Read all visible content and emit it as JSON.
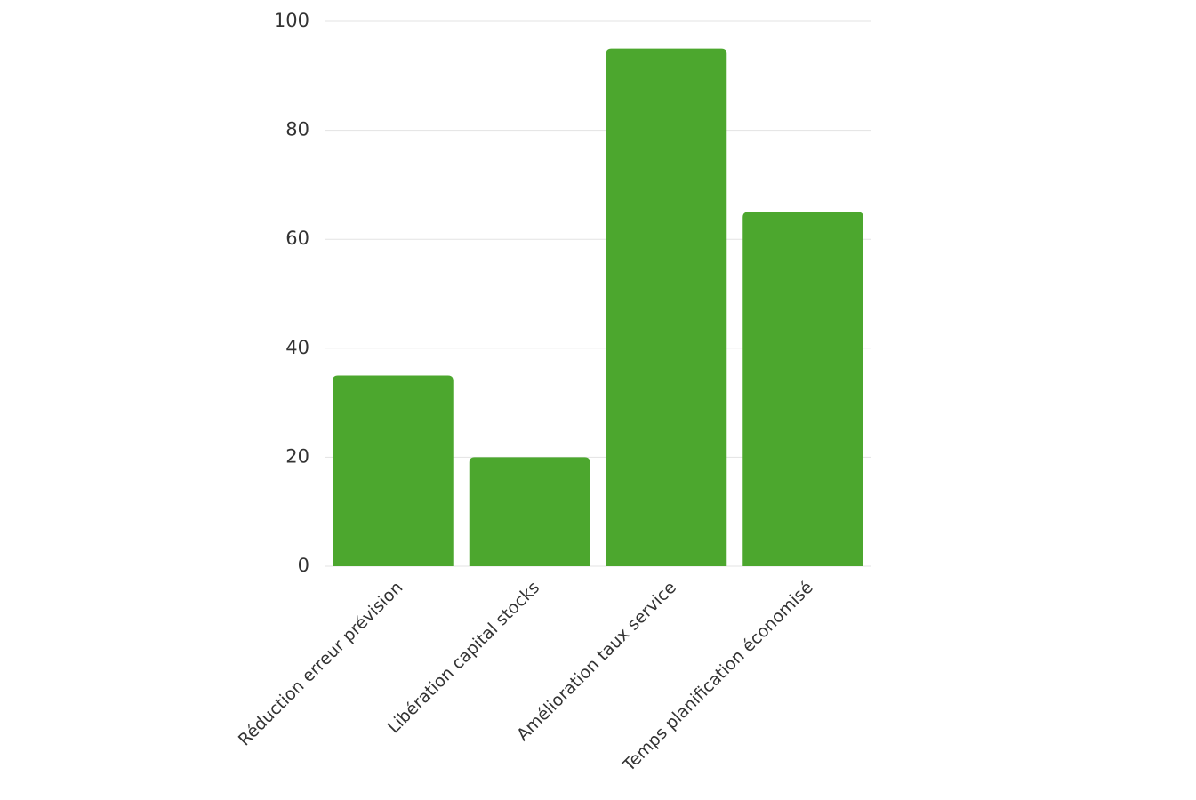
{
  "chart_data": {
    "type": "bar",
    "categories": [
      "Réduction erreur prévision",
      "Libération capital stocks",
      "Amélioration taux service",
      "Temps planification économisé"
    ],
    "values": [
      35,
      20,
      95,
      65
    ],
    "color": "#4ca72e",
    "ylim": [
      0,
      100
    ],
    "yticks": [
      0,
      20,
      40,
      60,
      80,
      100
    ],
    "grid": true
  }
}
